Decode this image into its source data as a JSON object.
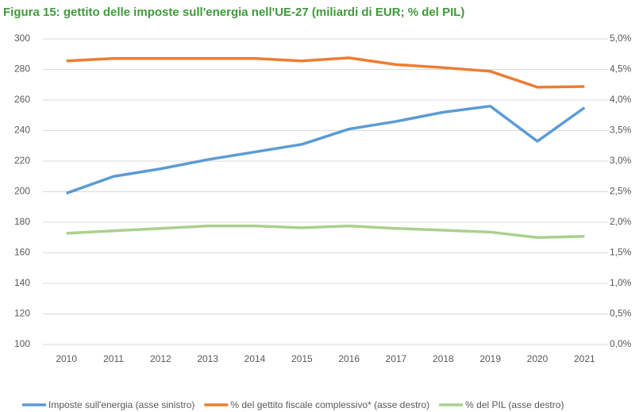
{
  "chart_data": {
    "type": "line",
    "title": "Figura 15: gettito delle imposte sull'energia nell'UE-27 (miliardi di EUR; % del PIL)",
    "categories": [
      "2010",
      "2011",
      "2012",
      "2013",
      "2014",
      "2015",
      "2016",
      "2017",
      "2018",
      "2019",
      "2020",
      "2021"
    ],
    "series": [
      {
        "name": "Imposte sull'energia (asse sinistro)",
        "color": "#5b9bd5",
        "values": [
          199,
          210,
          215,
          221,
          226,
          231,
          241,
          246,
          252,
          256,
          233,
          255
        ]
      },
      {
        "name": "% del gettito fiscale complessivo* (asse destro)",
        "color": "#ed7d31",
        "axis": "y2",
        "values": [
          4.64,
          4.68,
          4.68,
          4.68,
          4.68,
          4.64,
          4.69,
          4.58,
          4.53,
          4.47,
          4.21,
          4.22
        ]
      },
      {
        "name": "% del PIL (asse destro)",
        "color": "#a9d18e",
        "axis": "y2",
        "values": [
          1.82,
          1.86,
          1.9,
          1.94,
          1.94,
          1.91,
          1.94,
          1.9,
          1.87,
          1.84,
          1.75,
          1.77
        ]
      }
    ],
    "ylim": [
      100,
      300
    ],
    "yticks": [
      100,
      120,
      140,
      160,
      180,
      200,
      220,
      240,
      260,
      280,
      300
    ],
    "y2lim": [
      0,
      5
    ],
    "y2ticks": [
      {
        "value": 0,
        "label": "0,0%"
      },
      {
        "value": 0.5,
        "label": "0,5%"
      },
      {
        "value": 1,
        "label": "1,0%"
      },
      {
        "value": 1.5,
        "label": "1,5%"
      },
      {
        "value": 2,
        "label": "2,0%"
      },
      {
        "value": 2.5,
        "label": "2,5%"
      },
      {
        "value": 3,
        "label": "3,0%"
      },
      {
        "value": 3.5,
        "label": "3,5%"
      },
      {
        "value": 4,
        "label": "4,0%"
      },
      {
        "value": 4.5,
        "label": "4,5%"
      },
      {
        "value": 5,
        "label": "5,0%"
      }
    ],
    "grid": true
  }
}
